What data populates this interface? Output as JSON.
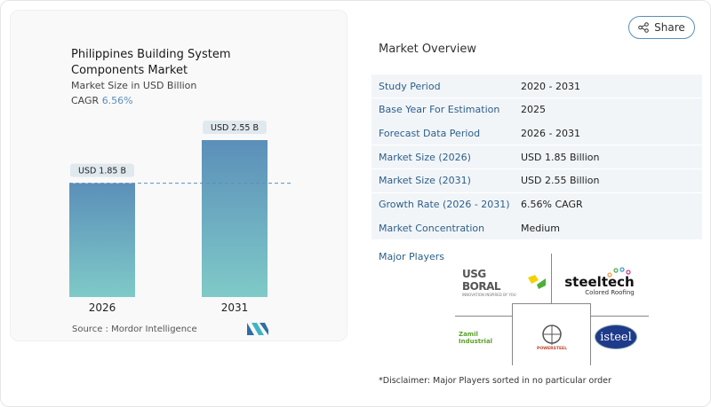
{
  "header": {
    "share_label": "Share",
    "share_icon": "share-icon"
  },
  "chart_card": {
    "title": "Philippines Building System Components Market",
    "subtitle": "Market Size in USD Billion",
    "cagr_label": "CAGR",
    "cagr_value": "6.56%",
    "source": "Source :  Mordor Intelligence"
  },
  "chart_data": {
    "type": "bar",
    "categories": [
      "2026",
      "2031"
    ],
    "values": [
      1.85,
      2.55
    ],
    "data_labels": [
      "USD 1.85 B",
      "USD 2.55 B"
    ],
    "title": "Philippines Building System Components Market",
    "ylabel": "Market Size in USD Billion",
    "ylim": [
      0,
      2.55
    ],
    "grid": false,
    "reference_line": 1.85,
    "colors": {
      "bar_top": "#5b8fb9",
      "bar_bottom": "#7fcac8",
      "label_bg": "#e0e9ee",
      "ref_line": "#5b8fb9"
    }
  },
  "overview": {
    "title": "Market Overview",
    "rows": [
      {
        "key": "Study Period",
        "value": "2020 - 2031"
      },
      {
        "key": "Base Year For Estimation",
        "value": "2025"
      },
      {
        "key": "Forecast Data Period",
        "value": "2026 - 2031"
      },
      {
        "key": "Market Size (2026)",
        "value": "USD 1.85 Billion"
      },
      {
        "key": "Market Size (2031)",
        "value": "USD 2.55 Billion"
      },
      {
        "key": "Growth Rate (2026 - 2031)",
        "value": "6.56% CAGR"
      },
      {
        "key": "Market Concentration",
        "value": "Medium"
      }
    ],
    "row_bg": "#f2f5f8",
    "major_players_label": "Major Players",
    "players": [
      {
        "name": "USG BORAL",
        "tagline": "INNOVATION INSPIRED BY YOU"
      },
      {
        "name": "steeltech",
        "tagline": "Colored Roofing"
      },
      {
        "name": "Zamil Industrial"
      },
      {
        "name": "POWERSTEEL"
      },
      {
        "name": "isteel",
        "tagline": "INC"
      }
    ],
    "disclaimer": "*Disclaimer: Major Players sorted in no particular order"
  }
}
